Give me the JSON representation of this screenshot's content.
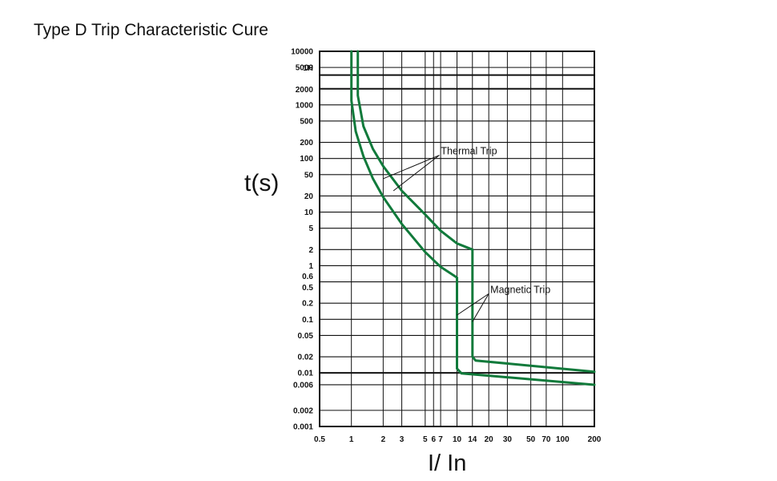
{
  "title": "Type D Trip Characteristic Cure",
  "ylabel": "t(s)",
  "xlabel": "I/ In",
  "colors": {
    "curve": "#117a3b",
    "grid": "#111111",
    "text": "#111111"
  },
  "chart_data": {
    "type": "line",
    "xscale": "log",
    "yscale": "log",
    "xlim": [
      0.5,
      200
    ],
    "ylim": [
      0.001,
      10000
    ],
    "x_ticks": [
      {
        "v": 0.5,
        "label": "0.5"
      },
      {
        "v": 1,
        "label": "1"
      },
      {
        "v": 2,
        "label": "2"
      },
      {
        "v": 3,
        "label": "3"
      },
      {
        "v": 5,
        "label": "5"
      },
      {
        "v": 6,
        "label": "6"
      },
      {
        "v": 7,
        "label": "7"
      },
      {
        "v": 10,
        "label": "10"
      },
      {
        "v": 14,
        "label": "14"
      },
      {
        "v": 20,
        "label": "20"
      },
      {
        "v": 30,
        "label": "30"
      },
      {
        "v": 50,
        "label": "50"
      },
      {
        "v": 70,
        "label": "70"
      },
      {
        "v": 100,
        "label": "100"
      },
      {
        "v": 200,
        "label": "200"
      }
    ],
    "y_ticks": [
      {
        "v": 10000,
        "label": "10000"
      },
      {
        "v": 5000,
        "label": "5000"
      },
      {
        "v": 3600,
        "label": "1H"
      },
      {
        "v": 2000,
        "label": "2000"
      },
      {
        "v": 1000,
        "label": "1000"
      },
      {
        "v": 500,
        "label": "500"
      },
      {
        "v": 200,
        "label": "200"
      },
      {
        "v": 100,
        "label": "100"
      },
      {
        "v": 50,
        "label": "50"
      },
      {
        "v": 20,
        "label": "20"
      },
      {
        "v": 10,
        "label": "10"
      },
      {
        "v": 5,
        "label": "5"
      },
      {
        "v": 2,
        "label": "2"
      },
      {
        "v": 1,
        "label": "1"
      },
      {
        "v": 0.6,
        "label": "0.6"
      },
      {
        "v": 0.5,
        "label": "0.5"
      },
      {
        "v": 0.2,
        "label": "0.2"
      },
      {
        "v": 0.1,
        "label": "0.1"
      },
      {
        "v": 0.05,
        "label": "0.05"
      },
      {
        "v": 0.02,
        "label": "0.02"
      },
      {
        "v": 0.01,
        "label": "0.01"
      },
      {
        "v": 0.006,
        "label": "0.006"
      },
      {
        "v": 0.002,
        "label": "0.002"
      },
      {
        "v": 0.001,
        "label": "0.001"
      }
    ],
    "y_gridlines": [
      10000,
      5000,
      3600,
      2000,
      1000,
      500,
      200,
      100,
      50,
      20,
      10,
      5,
      2,
      1,
      0.5,
      0.2,
      0.1,
      0.05,
      0.02,
      0.01,
      0.006,
      0.002,
      0.001
    ],
    "y_bold_gridlines": [
      3600,
      2000,
      0.01
    ],
    "series": [
      {
        "name": "lower-bound",
        "points": [
          [
            1,
            10000
          ],
          [
            1,
            1200
          ],
          [
            1.1,
            320
          ],
          [
            1.3,
            110
          ],
          [
            1.6,
            42
          ],
          [
            2,
            19
          ],
          [
            3,
            6
          ],
          [
            5,
            1.8
          ],
          [
            7,
            0.95
          ],
          [
            10,
            0.6
          ],
          [
            10,
            0.012
          ],
          [
            11,
            0.0098
          ],
          [
            200,
            0.006
          ]
        ]
      },
      {
        "name": "upper-bound",
        "points": [
          [
            1.15,
            10000
          ],
          [
            1.15,
            1500
          ],
          [
            1.3,
            400
          ],
          [
            1.6,
            150
          ],
          [
            2,
            72
          ],
          [
            3,
            25
          ],
          [
            5,
            9
          ],
          [
            7,
            4.5
          ],
          [
            10,
            2.6
          ],
          [
            14,
            2
          ],
          [
            14,
            0.02
          ],
          [
            15,
            0.017
          ],
          [
            200,
            0.0105
          ]
        ]
      }
    ],
    "annotations": [
      {
        "text": "Thermal Trip",
        "anchor": [
          6.8,
          115
        ],
        "pointers": [
          [
            2,
            42
          ],
          [
            2.5,
            25
          ]
        ]
      },
      {
        "text": "Magnetic Trip",
        "anchor": [
          20,
          0.3
        ],
        "pointers": [
          [
            10,
            0.12
          ],
          [
            14,
            0.09
          ]
        ]
      }
    ]
  }
}
